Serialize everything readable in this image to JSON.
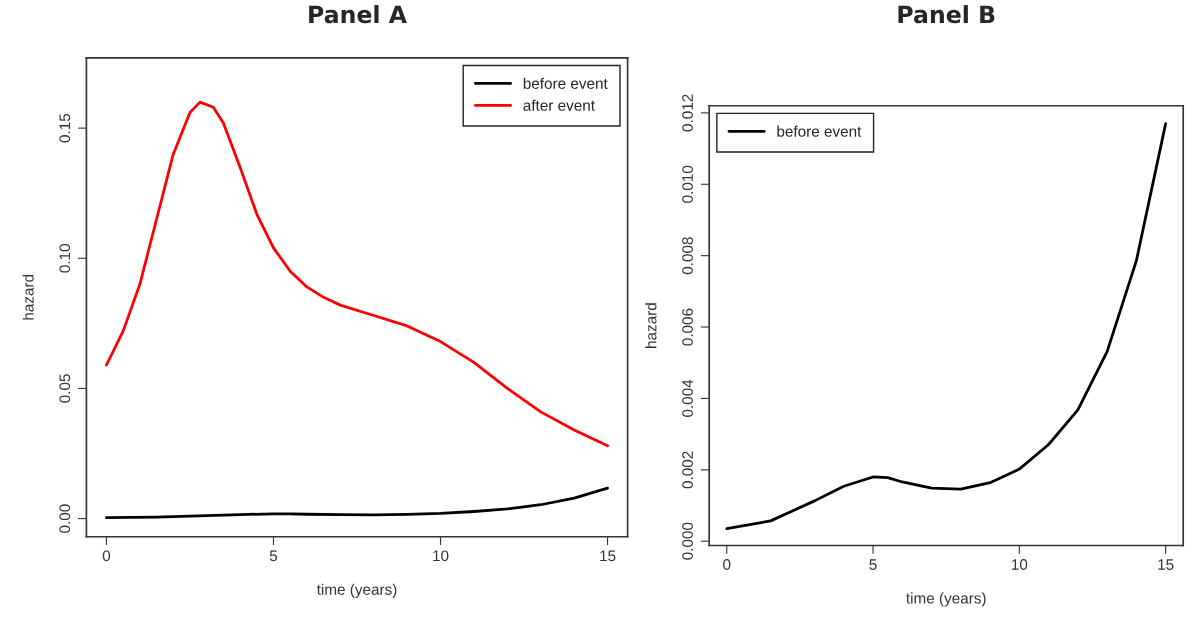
{
  "chart_data": [
    {
      "type": "line",
      "title": "Panel A",
      "xlabel": "time (years)",
      "ylabel": "hazard",
      "xlim": [
        -0.6,
        15.6
      ],
      "xticks": [
        0,
        5,
        10,
        15
      ],
      "ylim": [
        -0.007,
        0.177
      ],
      "yticks": [
        {
          "value": 0,
          "label": "0.00"
        },
        {
          "value": 0.05,
          "label": "0.05"
        },
        {
          "value": 0.1,
          "label": "0.10"
        },
        {
          "value": 0.15,
          "label": "0.15"
        }
      ],
      "legend": "top right",
      "grid": false,
      "series": [
        {
          "name": "before event",
          "color": "#000000",
          "x": [
            0,
            1.5,
            3,
            4,
            5,
            5.5,
            6,
            7,
            8,
            9,
            10,
            11,
            12,
            13,
            14,
            15
          ],
          "values": [
            0.00035,
            0.00057,
            0.00113,
            0.00154,
            0.0018,
            0.00178,
            0.00166,
            0.00149,
            0.00146,
            0.00164,
            0.00202,
            0.00271,
            0.00368,
            0.00531,
            0.00786,
            0.0117
          ]
        },
        {
          "name": "after event",
          "color": "#ff0000",
          "x": [
            0,
            0.5,
            1,
            1.5,
            2,
            2.5,
            2.8,
            3.2,
            3.5,
            4,
            4.5,
            5,
            5.5,
            6,
            6.5,
            7,
            8,
            9,
            10,
            11,
            12,
            13,
            14,
            15
          ],
          "values": [
            0.059,
            0.072,
            0.09,
            0.115,
            0.14,
            0.156,
            0.16,
            0.158,
            0.152,
            0.135,
            0.117,
            0.104,
            0.095,
            0.089,
            0.085,
            0.082,
            0.078,
            0.074,
            0.068,
            0.06,
            0.05,
            0.041,
            0.034,
            0.028
          ]
        }
      ]
    },
    {
      "type": "line",
      "title": "Panel B",
      "xlabel": "time (years)",
      "ylabel": "hazard",
      "xlim": [
        -0.6,
        15.6
      ],
      "xticks": [
        0,
        5,
        10,
        15
      ],
      "ylim": [
        -0.00012,
        0.0122
      ],
      "yticks": [
        {
          "value": 0,
          "label": "0.000"
        },
        {
          "value": 0.002,
          "label": "0.002"
        },
        {
          "value": 0.004,
          "label": "0.004"
        },
        {
          "value": 0.006,
          "label": "0.006"
        },
        {
          "value": 0.008,
          "label": "0.008"
        },
        {
          "value": 0.01,
          "label": "0.010"
        },
        {
          "value": 0.012,
          "label": "0.012"
        }
      ],
      "legend": "top left",
      "grid": false,
      "series": [
        {
          "name": "before event",
          "color": "#000000",
          "x": [
            0,
            1.5,
            3,
            4,
            5,
            5.5,
            6,
            7,
            8,
            9,
            10,
            11,
            12,
            13,
            14,
            15
          ],
          "values": [
            0.00035,
            0.00057,
            0.00113,
            0.00154,
            0.0018,
            0.00178,
            0.00166,
            0.00149,
            0.00146,
            0.00164,
            0.00202,
            0.00271,
            0.00368,
            0.00531,
            0.00786,
            0.0117
          ]
        }
      ]
    }
  ]
}
